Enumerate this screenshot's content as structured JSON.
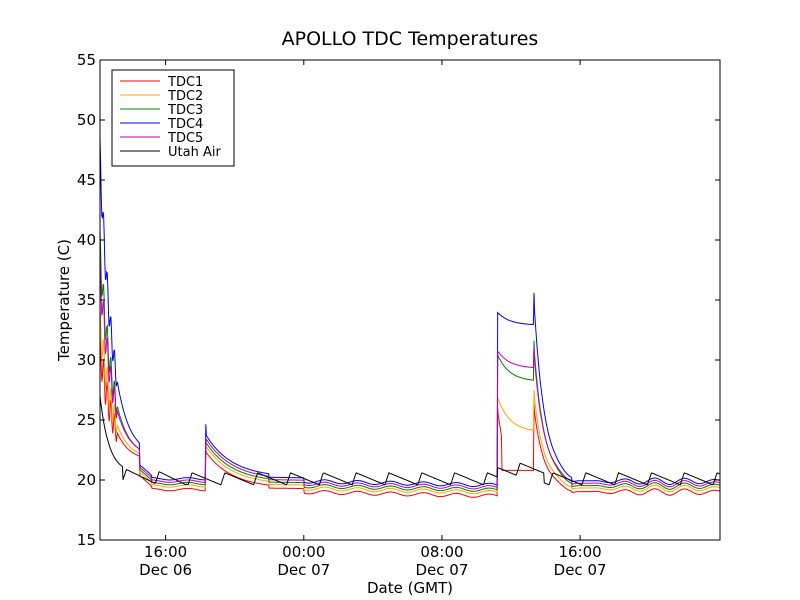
{
  "chart_data": {
    "type": "line",
    "title": "APOLLO TDC Temperatures",
    "xlabel": "Date (GMT)",
    "ylabel": "Temperature (C)",
    "ylim": [
      15,
      55
    ],
    "xlim_hours": [
      12.2,
      48.1
    ],
    "yticks": [
      "15",
      "20",
      "25",
      "30",
      "35",
      "40",
      "45",
      "50",
      "55"
    ],
    "xticks": [
      {
        "h": 16,
        "time": "16:00",
        "date": "Dec 06"
      },
      {
        "h": 24,
        "time": "00:00",
        "date": "Dec 07"
      },
      {
        "h": 32,
        "time": "08:00",
        "date": "Dec 07"
      },
      {
        "h": 40,
        "time": "16:00",
        "date": "Dec 07"
      }
    ],
    "legend_position": "top-left",
    "series": [
      {
        "name": "TDC1",
        "color": "#ff0000",
        "offset": 0.0,
        "spike_start": 26,
        "spike_mode": "flat",
        "spike_plateau": 20.8,
        "spike_peak2": 26.3
      },
      {
        "name": "TDC2",
        "color": "#ffa500",
        "offset": 0.3,
        "spike_start": 27,
        "spike_mode": "decay",
        "spike_plateau": 24.0,
        "spike_peak2": 27.5
      },
      {
        "name": "TDC3",
        "color": "#008000",
        "offset": 0.5,
        "spike_start": 30.5,
        "spike_mode": "decay",
        "spike_plateau": 28.2,
        "spike_peak2": 31.6
      },
      {
        "name": "TDC4",
        "color": "#0000ff",
        "offset": 0.9,
        "spike_start": 34.0,
        "spike_mode": "decay",
        "spike_plateau": 32.9,
        "spike_peak2": 35.6
      },
      {
        "name": "TDC5",
        "color": "#bf00bf",
        "offset": 0.7,
        "spike_start": 30.8,
        "spike_mode": "decay",
        "spike_plateau": 29.3,
        "spike_peak2": 31.0
      },
      {
        "name": "Utah Air",
        "color": "#000000",
        "offset": 0.0,
        "spike_start": 0,
        "spike_mode": "air",
        "spike_plateau": 20.8,
        "spike_peak2": 20.8
      }
    ],
    "start_peaks": [
      {
        "name": "TDC1",
        "start": 31.0
      },
      {
        "name": "TDC2",
        "start": 33.0
      },
      {
        "name": "TDC3",
        "start": 39.0
      },
      {
        "name": "TDC4",
        "start": 46.5
      },
      {
        "name": "TDC5",
        "start": 37.0
      },
      {
        "name": "Utah Air",
        "start": 27.0
      }
    ],
    "events": {
      "bump1_hour": 18.3,
      "spike_start_hour": 35.2,
      "spike_end_hour": 37.3,
      "air_cycle_hours": 1.9
    }
  }
}
